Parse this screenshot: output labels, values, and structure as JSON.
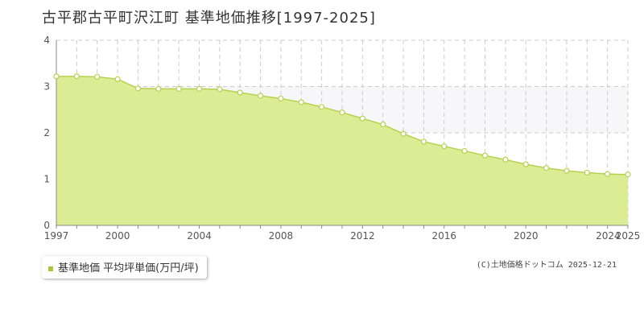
{
  "header": {
    "title": "古平郡古平町沢江町 基準地価推移[1997-2025]"
  },
  "legend": {
    "label": "基準地価 平均坪単価(万円/坪)"
  },
  "credit": {
    "source": "(C)土地価格ドットコム",
    "date": "2025-12-21"
  },
  "colors": {
    "fill": "#dcec94",
    "line": "#b4d24e",
    "marker_stroke": "#b4d24e",
    "marker_fill": "#ffffff",
    "grid": "#cccccc",
    "axis": "#888888",
    "upper_band": "#f7f7f9"
  },
  "chart_data": {
    "type": "area",
    "title": "古平郡古平町沢江町 基準地価推移[1997-2025]",
    "xlabel": "",
    "ylabel": "",
    "ylim": [
      0,
      4
    ],
    "xlim": [
      1997,
      2025
    ],
    "yticks": [
      0,
      1,
      2,
      3,
      4
    ],
    "xtick_labels": [
      "1997",
      "2000",
      "2004",
      "2008",
      "2012",
      "2016",
      "2020",
      "2024",
      "2025"
    ],
    "grid": true,
    "legend_position": "bottom-left",
    "series": [
      {
        "name": "基準地価 平均坪単価(万円/坪)",
        "x": [
          1997,
          1998,
          1999,
          2000,
          2001,
          2002,
          2003,
          2004,
          2005,
          2006,
          2007,
          2008,
          2009,
          2010,
          2011,
          2012,
          2013,
          2014,
          2015,
          2016,
          2017,
          2018,
          2019,
          2020,
          2021,
          2022,
          2023,
          2024,
          2025
        ],
        "values": [
          3.22,
          3.22,
          3.21,
          3.16,
          2.96,
          2.95,
          2.95,
          2.95,
          2.94,
          2.87,
          2.8,
          2.74,
          2.66,
          2.56,
          2.44,
          2.31,
          2.18,
          1.98,
          1.81,
          1.71,
          1.61,
          1.51,
          1.42,
          1.32,
          1.24,
          1.18,
          1.14,
          1.11,
          1.1
        ]
      }
    ]
  }
}
